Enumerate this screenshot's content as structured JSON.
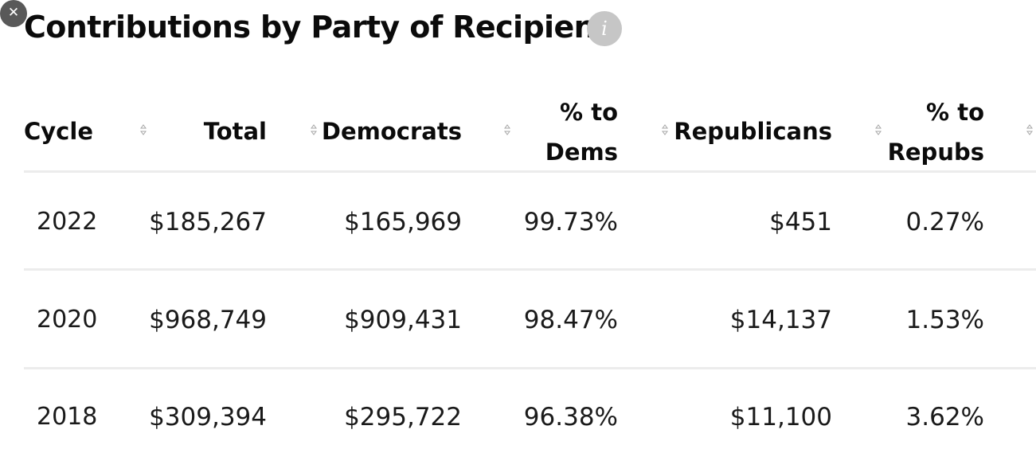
{
  "window": {
    "close_glyph": "✕"
  },
  "title": "Contributions by Party of Recipient",
  "info_glyph": "i",
  "columns": {
    "cycle": "Cycle",
    "total": "Total",
    "democrats": "Democrats",
    "pct_dems": [
      "% to",
      "Dems"
    ],
    "republicans": "Republicans",
    "pct_repubs": [
      "% to",
      "Repubs"
    ]
  },
  "rows": [
    {
      "cycle": "2022",
      "total": "$185,267",
      "democrats": "$165,969",
      "pct_dems": "99.73%",
      "republicans": "$451",
      "pct_repubs": "0.27%"
    },
    {
      "cycle": "2020",
      "total": "$968,749",
      "democrats": "$909,431",
      "pct_dems": "98.47%",
      "republicans": "$14,137",
      "pct_repubs": "1.53%"
    },
    {
      "cycle": "2018",
      "total": "$309,394",
      "democrats": "$295,722",
      "pct_dems": "96.38%",
      "republicans": "$11,100",
      "pct_repubs": "3.62%"
    }
  ],
  "colors": {
    "title": "#0b0b0b",
    "info_badge": "#c6c6c6",
    "separator": "#ececec",
    "close_button": "#595959"
  }
}
